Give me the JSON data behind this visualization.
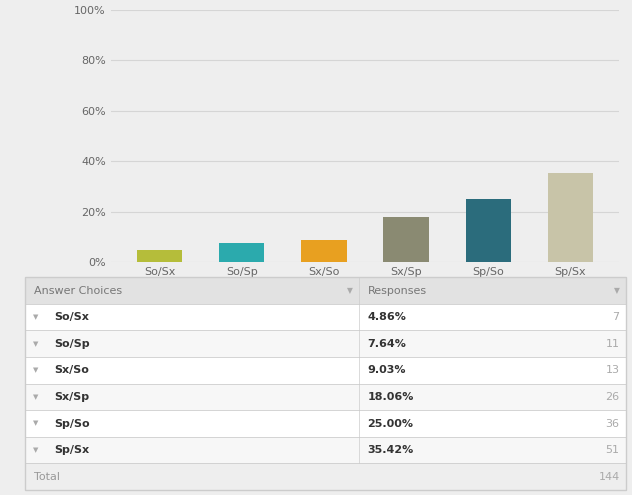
{
  "categories": [
    "So/Sx",
    "So/Sp",
    "Sx/So",
    "Sx/Sp",
    "Sp/So",
    "Sp/Sx"
  ],
  "percentages": [
    4.86,
    7.64,
    9.03,
    18.06,
    25.0,
    35.42
  ],
  "counts": [
    7,
    11,
    13,
    26,
    36,
    51
  ],
  "total": 144,
  "bar_colors": [
    "#b5bd3a",
    "#2baaad",
    "#e8a020",
    "#8a8a72",
    "#2b6c7c",
    "#c8c4a8"
  ],
  "bg_color": "#eeeeee",
  "chart_bg": "#eeeeee",
  "yticks": [
    0,
    20,
    40,
    60,
    80,
    100
  ],
  "ytick_labels": [
    "0%",
    "20%",
    "40%",
    "60%",
    "80%",
    "100%"
  ],
  "table_header_bg": "#e2e2e2",
  "table_row_bg_white": "#ffffff",
  "table_row_bg_gray": "#f7f7f7",
  "table_border_color": "#cccccc",
  "header_text": [
    "Answer Choices",
    "Responses"
  ],
  "total_row_bg": "#eeeeee",
  "col_split": 0.555
}
